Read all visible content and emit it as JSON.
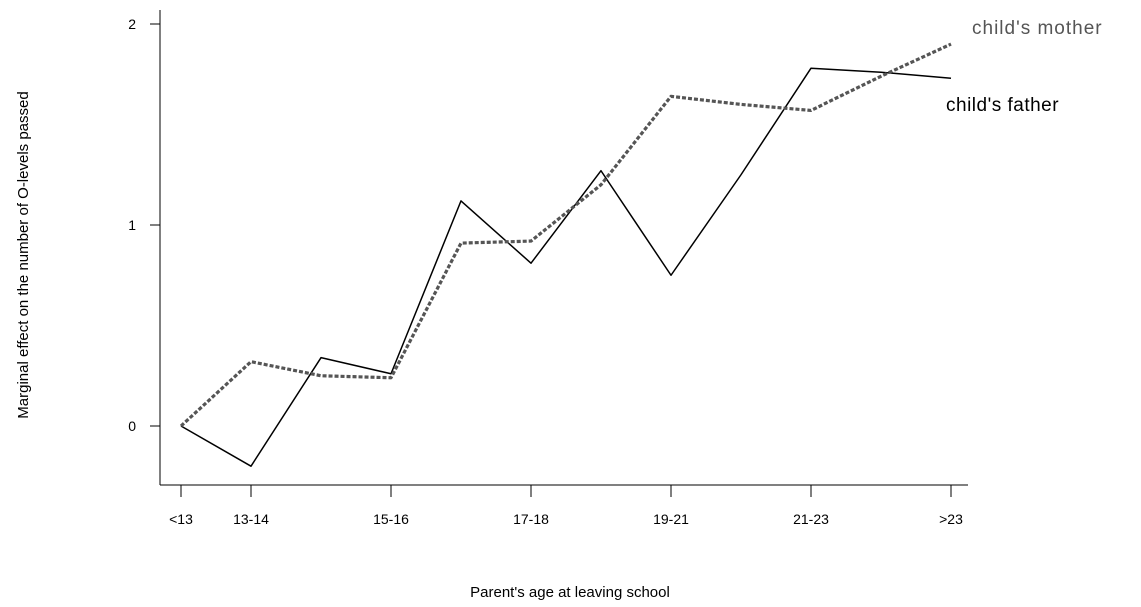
{
  "chart_data": {
    "type": "line",
    "title": "",
    "xlabel": "Parent's age at leaving school",
    "ylabel": "Marginal effect on the number of O-levels passed",
    "x_positions": [
      0,
      1,
      2,
      3,
      4,
      5,
      6,
      7,
      8,
      9,
      10,
      11
    ],
    "x_tick_labels": [
      {
        "x": 0,
        "label": "<13"
      },
      {
        "x": 1,
        "label": "13-14"
      },
      {
        "x": 3,
        "label": "15-16"
      },
      {
        "x": 5,
        "label": "17-18"
      },
      {
        "x": 7,
        "label": "19-21"
      },
      {
        "x": 9,
        "label": "21-23"
      },
      {
        "x": 11,
        "label": ">23"
      }
    ],
    "y_ticks": [
      0,
      1,
      2
    ],
    "ylim": [
      -0.3,
      2.1
    ],
    "xlim": [
      0,
      11
    ],
    "grid": false,
    "legend": "inline labels at right end of lines",
    "series": [
      {
        "name": "child's father",
        "style": "solid",
        "color": "#000000",
        "values": [
          0.0,
          -0.2,
          0.34,
          0.26,
          1.12,
          0.81,
          1.27,
          0.75,
          1.25,
          1.78,
          1.76,
          1.73
        ]
      },
      {
        "name": "child's mother",
        "style": "dotted",
        "color": "#555555",
        "values": [
          0.0,
          0.32,
          0.25,
          0.24,
          0.91,
          0.92,
          1.2,
          1.64,
          1.6,
          1.57,
          1.74,
          1.9
        ]
      }
    ]
  }
}
